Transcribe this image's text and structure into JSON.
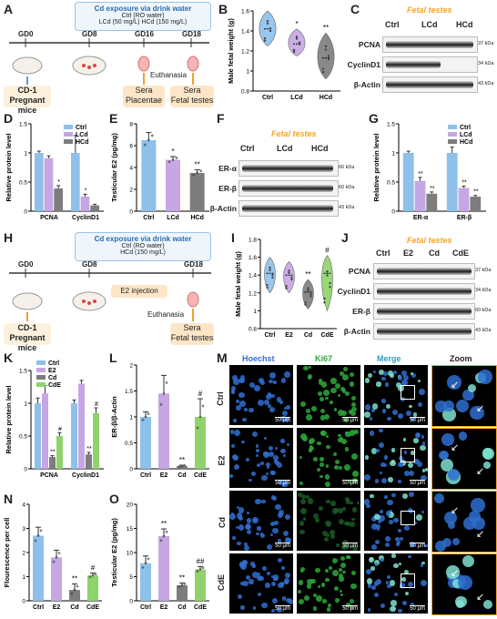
{
  "panels": [
    "A",
    "B",
    "C",
    "D",
    "E",
    "F",
    "G",
    "H",
    "I",
    "J",
    "K",
    "L",
    "M",
    "N",
    "O"
  ],
  "A": {
    "box_title": "Cd exposure via drink water",
    "box_line1": "Ctrl (RO water)",
    "box_line2": "LCd (50 mg/L) HCd (150 mg/L)",
    "timepoints": [
      "GD0",
      "GD8",
      "GD16",
      "GD18"
    ],
    "euthanasia": "Euthanasia",
    "mice_label": "CD-1\nPregnant mice",
    "sera1": "Sera\nPlacentae",
    "sera2": "Sera\nFetal testes"
  },
  "H": {
    "box_title": "Cd exposure via drink water",
    "box_line1": "Ctrl (RO water)",
    "box_line2": "HCd (150 mg/L)",
    "timepoints": [
      "GD0",
      "GD8",
      "GD18"
    ],
    "e2": "E2 injection",
    "euthanasia": "Euthanasia",
    "mice_label": "CD-1\nPregnant mice",
    "sera": "Sera\nFetal testes"
  },
  "C": {
    "title": "Fetal testes",
    "groups": [
      "Ctrl",
      "LCd",
      "HCd"
    ],
    "rows": [
      {
        "name": "PCNA",
        "kda": "37 kDa"
      },
      {
        "name": "CyclinD1",
        "kda": "34 kDa"
      },
      {
        "name": "β-Actin",
        "kda": "43 kDa"
      }
    ]
  },
  "F": {
    "title": "Fetal testes",
    "groups": [
      "Ctrl",
      "LCd",
      "HCd"
    ],
    "rows": [
      {
        "name": "ER-α",
        "kda": "66 kDa"
      },
      {
        "name": "ER-β",
        "kda": "60 kDa"
      },
      {
        "name": "β-Actin",
        "kda": "43 kDa"
      }
    ]
  },
  "J": {
    "title": "Fetal testes",
    "groups": [
      "Ctrl",
      "E2",
      "Cd",
      "CdE"
    ],
    "rows": [
      {
        "name": "PCNA",
        "kda": "37 kDa"
      },
      {
        "name": "CyclinD1",
        "kda": "34 kDa"
      },
      {
        "name": "ER-β",
        "kda": "60 kDa"
      },
      {
        "name": "β-Actin",
        "kda": "43 kDa"
      }
    ]
  },
  "M": {
    "columns": [
      "Hoechst",
      "Ki67",
      "Merge",
      "Zoom"
    ],
    "rows": [
      "Ctrl",
      "E2",
      "Cd",
      "CdE"
    ],
    "scale": "50 μm"
  },
  "colors": {
    "ctrl": "#8ec0ea",
    "lcd": "#c6a6e3",
    "hcd": "#7d7d7d",
    "e2": "#c6a6e3",
    "cd": "#7d7d7d",
    "cde": "#8fd36b",
    "title_orange": "#f5a623",
    "hoechst": "#2f6fd0",
    "ki67": "#2ea83a"
  },
  "chart_data": [
    {
      "panel": "B",
      "type": "violin",
      "categories": [
        "Ctrl",
        "LCd",
        "HCd"
      ],
      "values": [
        1.42,
        1.27,
        1.13
      ],
      "ranges": [
        [
          1.25,
          1.6
        ],
        [
          1.15,
          1.42
        ],
        [
          0.92,
          1.38
        ]
      ],
      "ylabel": "Male fetal weight (g)",
      "ylim": [
        0.8,
        1.6
      ],
      "yticks": [
        0.8,
        1.0,
        1.2,
        1.4,
        1.6
      ],
      "significance": [
        "",
        "*",
        "**"
      ]
    },
    {
      "panel": "D",
      "type": "bar",
      "groups": [
        "PCNA",
        "CyclinD1"
      ],
      "legend": [
        "Ctrl",
        "LCd",
        "HCd"
      ],
      "series": [
        {
          "name": "Ctrl",
          "values": [
            1.0,
            1.0
          ],
          "err": [
            0.03,
            0.3
          ]
        },
        {
          "name": "LCd",
          "values": [
            0.91,
            0.25
          ],
          "err": [
            0.04,
            0.04
          ]
        },
        {
          "name": "HCd",
          "values": [
            0.39,
            0.1
          ],
          "err": [
            0.05,
            0.02
          ]
        }
      ],
      "ylabel": "Relative protein level",
      "ylim": [
        0,
        1.5
      ],
      "yticks": [
        0,
        0.5,
        1.0,
        1.5
      ],
      "significance": [
        [
          "",
          "",
          "*"
        ],
        [
          "",
          "*",
          ""
        ]
      ]
    },
    {
      "panel": "E",
      "type": "bar",
      "categories": [
        "Ctrl",
        "LCd",
        "HCd"
      ],
      "values": [
        6.5,
        4.7,
        3.5
      ],
      "err": [
        0.7,
        0.3,
        0.3
      ],
      "ylabel": "Testicular E2 (pg/mg)",
      "ylim": [
        0,
        8
      ],
      "yticks": [
        0,
        2,
        4,
        6,
        8
      ],
      "significance": [
        "",
        "*",
        "**"
      ]
    },
    {
      "panel": "G",
      "type": "bar",
      "groups": [
        "ER-α",
        "ER-β"
      ],
      "legend": [
        "Ctrl",
        "LCd",
        "HCd"
      ],
      "series": [
        {
          "name": "Ctrl",
          "values": [
            1.0,
            1.0
          ],
          "err": [
            0.03,
            0.1
          ]
        },
        {
          "name": "LCd",
          "values": [
            0.52,
            0.4
          ],
          "err": [
            0.06,
            0.03
          ]
        },
        {
          "name": "HCd",
          "values": [
            0.3,
            0.25
          ],
          "err": [
            0.03,
            0.02
          ]
        }
      ],
      "ylabel": "Relative protein level",
      "ylim": [
        0,
        1.5
      ],
      "yticks": [
        0,
        0.5,
        1.0,
        1.5
      ],
      "significance": [
        [
          "",
          "**",
          "**"
        ],
        [
          "",
          "**",
          "**"
        ]
      ]
    },
    {
      "panel": "I",
      "type": "violin",
      "categories": [
        "Ctrl",
        "E2",
        "Cd",
        "CdE"
      ],
      "values": [
        1.42,
        1.4,
        1.21,
        1.42
      ],
      "ranges": [
        [
          1.2,
          1.6
        ],
        [
          1.2,
          1.55
        ],
        [
          1.02,
          1.35
        ],
        [
          1.0,
          1.62
        ]
      ],
      "ylabel": "Male fetal weight (g)",
      "ylim": [
        0.8,
        1.8
      ],
      "yticks": [
        0.8,
        1.0,
        1.2,
        1.4,
        1.6,
        1.8
      ],
      "significance": [
        "",
        "",
        "**",
        "#"
      ]
    },
    {
      "panel": "K",
      "type": "bar",
      "groups": [
        "PCNA",
        "CyclinD1"
      ],
      "legend": [
        "Ctrl",
        "E2",
        "Cd",
        "CdE"
      ],
      "series": [
        {
          "name": "Ctrl",
          "values": [
            1.0,
            1.0
          ],
          "err": [
            0.08,
            0.05
          ]
        },
        {
          "name": "E2",
          "values": [
            1.15,
            1.3
          ],
          "err": [
            0.12,
            0.05
          ]
        },
        {
          "name": "Cd",
          "values": [
            0.18,
            0.22
          ],
          "err": [
            0.02,
            0.03
          ]
        },
        {
          "name": "CdE",
          "values": [
            0.5,
            0.85
          ],
          "err": [
            0.05,
            0.08
          ]
        }
      ],
      "ylabel": "Relative protein level",
      "ylim": [
        0,
        1.5
      ],
      "yticks": [
        0,
        0.5,
        1.0,
        1.5
      ],
      "significance": [
        [
          "",
          "",
          "**",
          "#"
        ],
        [
          "",
          "",
          "**",
          "#"
        ]
      ]
    },
    {
      "panel": "L",
      "type": "bar",
      "categories": [
        "Ctrl",
        "E2",
        "Cd",
        "CdE"
      ],
      "values": [
        1.0,
        1.45,
        0.05,
        1.0
      ],
      "err": [
        0.1,
        0.35,
        0.02,
        0.35
      ],
      "ylabel": "ER-β/β-Actin",
      "ylim": [
        0,
        2.0
      ],
      "yticks": [
        0,
        0.5,
        1.0,
        1.5,
        2.0
      ],
      "significance": [
        "",
        "",
        "**",
        "#"
      ]
    },
    {
      "panel": "N",
      "type": "bar",
      "categories": [
        "Ctrl",
        "E2",
        "Cd",
        "CdE"
      ],
      "values": [
        2.7,
        1.8,
        0.45,
        1.05
      ],
      "err": [
        0.35,
        0.3,
        0.25,
        0.1
      ],
      "ylabel": "Flourescence per cell",
      "ylim": [
        0,
        4
      ],
      "yticks": [
        0,
        1,
        2,
        3,
        4
      ],
      "significance": [
        "",
        "",
        "**",
        "#"
      ]
    },
    {
      "panel": "O",
      "type": "bar",
      "categories": [
        "Ctrl",
        "E2",
        "Cd",
        "CdE"
      ],
      "values": [
        7.8,
        13.4,
        3.2,
        6.5
      ],
      "err": [
        1.5,
        1.5,
        0.5,
        0.6
      ],
      "ylabel": "Testicular E2 (pg/mg)",
      "ylim": [
        0,
        20
      ],
      "yticks": [
        0,
        5,
        10,
        15,
        20
      ],
      "significance": [
        "",
        "**",
        "**",
        "##"
      ]
    }
  ]
}
